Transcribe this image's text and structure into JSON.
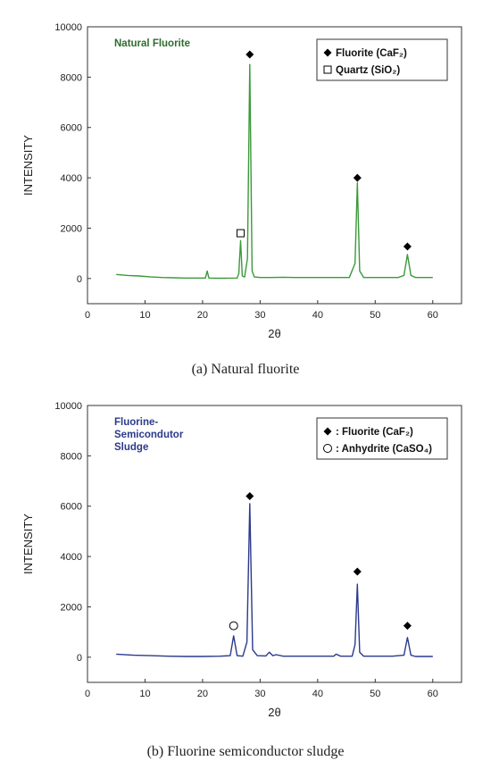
{
  "figures": [
    {
      "caption": "(a) Natural fluorite",
      "chart_data": {
        "type": "line",
        "title": "Natural Fluorite",
        "title_color": "#2f6b2f",
        "xlabel": "2θ",
        "ylabel": "INTENSITY",
        "xlim": [
          0,
          65
        ],
        "ylim": [
          -1000,
          10000
        ],
        "xticks": [
          0,
          10,
          20,
          30,
          40,
          50,
          60
        ],
        "yticks": [
          0,
          2000,
          4000,
          6000,
          8000,
          10000
        ],
        "grid": false,
        "legend_position": "top-right",
        "series": [
          {
            "color": "#3a9a3a",
            "x": [
              5,
              7,
              9,
              11,
              13,
              15,
              17,
              19,
              20.5,
              20.8,
              21.1,
              22,
              24,
              26,
              26.3,
              26.6,
              26.9,
              27.3,
              27.8,
              28.2,
              28.6,
              29,
              30,
              32,
              34,
              36,
              38,
              40,
              42,
              44,
              45.5,
              46.5,
              46.9,
              47.3,
              48,
              50,
              52,
              54,
              55,
              55.6,
              56.2,
              57,
              59,
              60
            ],
            "y": [
              160,
              120,
              100,
              60,
              40,
              30,
              20,
              20,
              20,
              300,
              20,
              10,
              10,
              20,
              200,
              1500,
              100,
              60,
              800,
              8500,
              300,
              60,
              40,
              40,
              50,
              40,
              40,
              40,
              40,
              40,
              40,
              600,
              3800,
              300,
              40,
              40,
              40,
              40,
              120,
              950,
              120,
              40,
              40,
              40
            ]
          }
        ],
        "markers": [
          {
            "shape": "diamond",
            "x": 28.2,
            "y": 8900
          },
          {
            "shape": "square",
            "x": 26.6,
            "y": 1800
          },
          {
            "shape": "diamond",
            "x": 46.9,
            "y": 4000
          },
          {
            "shape": "diamond",
            "x": 55.6,
            "y": 1270
          }
        ],
        "legend": [
          {
            "shape": "diamond",
            "label": "Fluorite (CaF₂)"
          },
          {
            "shape": "square",
            "label": "Quartz (SiO₂)"
          }
        ]
      }
    },
    {
      "caption": "(b) Fluorine semiconductor sludge",
      "chart_data": {
        "type": "line",
        "title": "Fluorine-\nSemicondutor\nSludge",
        "title_color": "#2b3a8c",
        "xlabel": "2θ",
        "ylabel": "INTENSITY",
        "xlim": [
          0,
          65
        ],
        "ylim": [
          -1000,
          10000
        ],
        "xticks": [
          0,
          10,
          20,
          30,
          40,
          50,
          60
        ],
        "yticks": [
          0,
          2000,
          4000,
          6000,
          8000,
          10000
        ],
        "grid": false,
        "legend_position": "top-right",
        "series": [
          {
            "color": "#2b3a8c",
            "x": [
              5,
              8,
              11,
              14,
              17,
              20,
              23,
              24.8,
              25.4,
              26,
              27,
              27.7,
              28.2,
              28.7,
              29.5,
              31,
              31.6,
              32.2,
              32.8,
              34,
              37,
              40,
              42.8,
              43.2,
              44,
              46,
              46.5,
              46.9,
              47.3,
              48,
              50,
              53,
              55,
              55.6,
              56.2,
              57,
              60
            ],
            "y": [
              120,
              80,
              60,
              40,
              30,
              30,
              40,
              60,
              850,
              60,
              40,
              600,
              6100,
              300,
              60,
              50,
              200,
              60,
              100,
              40,
              40,
              40,
              40,
              120,
              40,
              40,
              500,
              2900,
              200,
              40,
              40,
              40,
              80,
              780,
              80,
              30,
              30
            ]
          }
        ],
        "markers": [
          {
            "shape": "circle",
            "x": 25.4,
            "y": 1250
          },
          {
            "shape": "diamond",
            "x": 28.2,
            "y": 6400
          },
          {
            "shape": "diamond",
            "x": 46.9,
            "y": 3400
          },
          {
            "shape": "diamond",
            "x": 55.6,
            "y": 1250
          }
        ],
        "legend": [
          {
            "shape": "diamond",
            "label": ": Fluorite (CaF₂)"
          },
          {
            "shape": "circle",
            "label": ": Anhydrite (CaSO₄)"
          }
        ]
      }
    }
  ]
}
